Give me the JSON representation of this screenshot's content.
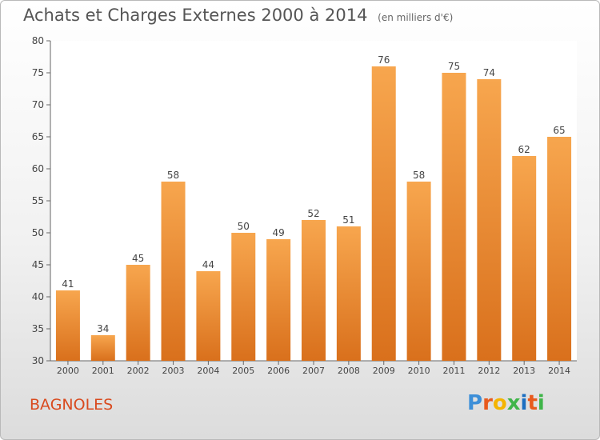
{
  "chart_data": {
    "type": "bar",
    "title": "Achats et Charges Externes 2000 à 2014",
    "subtitle": "(en milliers d'€)",
    "categories": [
      "2000",
      "2001",
      "2002",
      "2003",
      "2004",
      "2005",
      "2006",
      "2007",
      "2008",
      "2009",
      "2010",
      "2011",
      "2012",
      "2013",
      "2014"
    ],
    "values": [
      41,
      34,
      45,
      58,
      44,
      50,
      49,
      52,
      51,
      76,
      58,
      75,
      74,
      62,
      65
    ],
    "ylim": [
      30,
      80
    ],
    "yticks": [
      30,
      35,
      40,
      45,
      50,
      55,
      60,
      65,
      70,
      75,
      80
    ],
    "grid": false,
    "bar_color_top": "#f7a64e",
    "bar_color_bottom": "#d9701c"
  },
  "footer": {
    "commune": "BAGNOLES",
    "logo_letters": [
      "P",
      "r",
      "o",
      "x",
      "i",
      "t",
      "i"
    ],
    "logo_colors": [
      "#3d8fd8",
      "#e85a1d",
      "#f4b400",
      "#3fb549",
      "#1c6fc1",
      "#e85a1d",
      "#3fb549"
    ]
  }
}
